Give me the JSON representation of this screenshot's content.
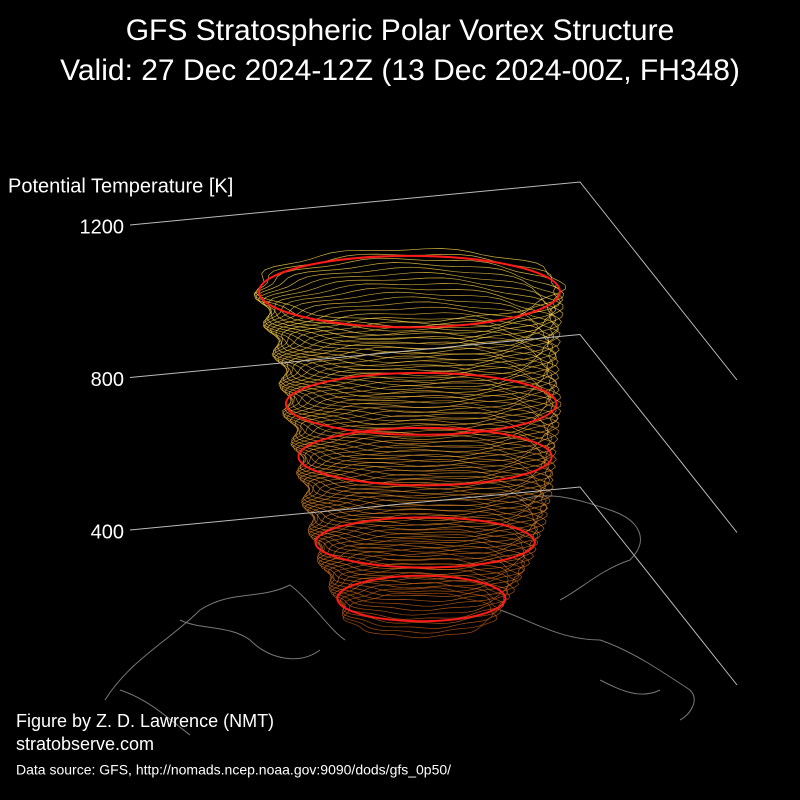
{
  "chart_data": {
    "type": "vortex3d",
    "title": [
      "GFS Stratospheric Polar Vortex Structure",
      "Valid: 27 Dec 2024-12Z  (13 Dec 2024-00Z, FH348)"
    ],
    "zlabel": "Potential Temperature [K]",
    "zlim": [
      400,
      1200
    ],
    "zticks": [
      400,
      800,
      1200
    ],
    "credits": [
      "Figure by Z. D. Lawrence (NMT)",
      "stratobserve.com",
      "Data source: GFS, http://nomads.ncep.noaa.gov:9090/dods/gfs_0p50/"
    ]
  }
}
